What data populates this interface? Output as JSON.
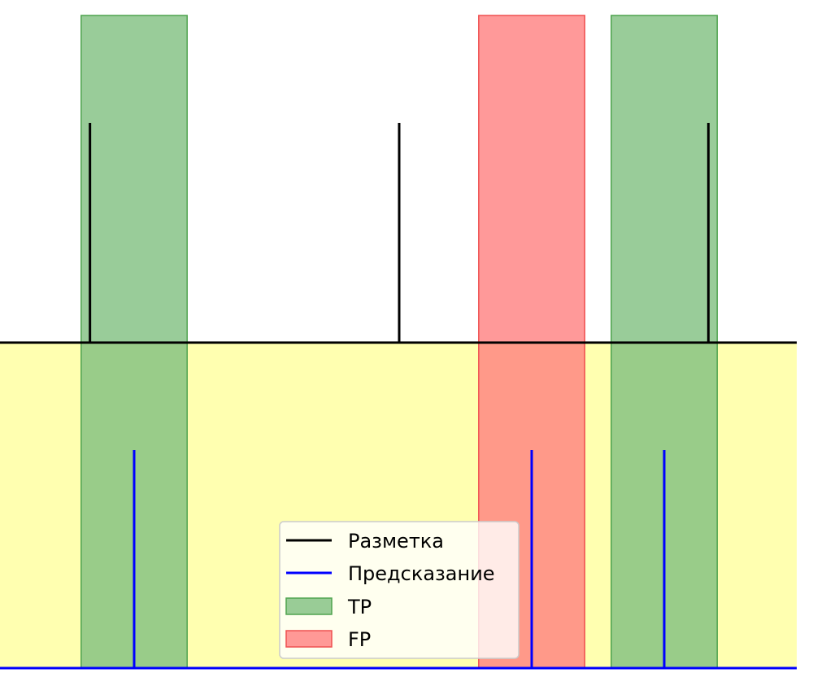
{
  "chart_data": {
    "type": "events",
    "xlim": [
      0,
      9
    ],
    "ground_truth": {
      "x": [
        1.0,
        4.5,
        8.0
      ],
      "color": "#000000"
    },
    "prediction": {
      "x": [
        1.5,
        6.0,
        7.5
      ],
      "color": "#0000ff"
    },
    "intervals": [
      {
        "kind": "TP",
        "x0": 0.9,
        "x1": 2.1
      },
      {
        "kind": "FP",
        "x0": 5.4,
        "x1": 6.6
      },
      {
        "kind": "TP",
        "x0": 6.9,
        "x1": 8.1
      }
    ],
    "colors": {
      "TP": "#7fbf7f",
      "FP": "#ff7f7f",
      "background_lower": "#ffffb0"
    },
    "legend": {
      "position": "bottom-center",
      "entries": [
        {
          "type": "line",
          "label": "Разметка",
          "color": "#000000"
        },
        {
          "type": "line",
          "label": "Предсказание",
          "color": "#0000ff"
        },
        {
          "type": "patch",
          "label": "TP",
          "color": "#7fbf7f"
        },
        {
          "type": "patch",
          "label": "FP",
          "color": "#ff7f7f"
        }
      ]
    }
  }
}
